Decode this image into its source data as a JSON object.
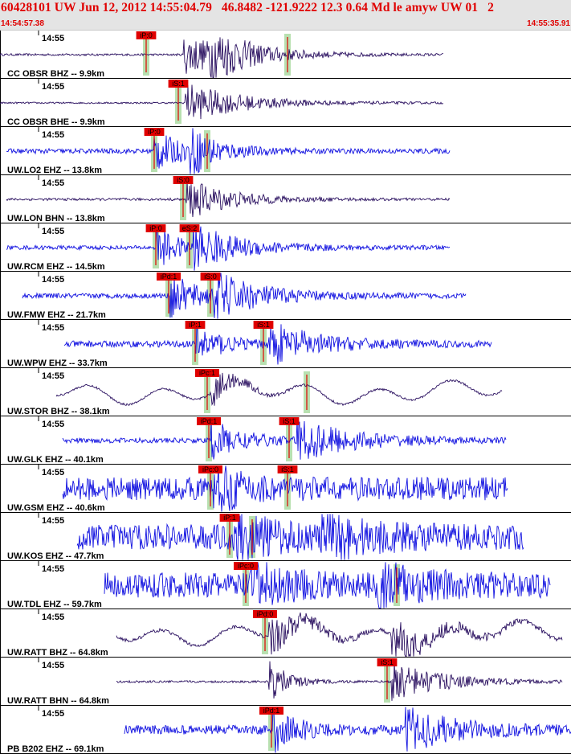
{
  "header": {
    "title": "60428101 UW Jun 12, 2012 14:55:04.79   46.8482 -121.9222 12.3 0.64 Md le amyw UW 01   2",
    "time_start": "14:54:57.38",
    "time_end": "14:55:35.91"
  },
  "colors": {
    "accent": "#e00000",
    "header_bg": "#e4e4e4",
    "trace_blue": "#1010e0",
    "trace_dark": "#2a1060",
    "window_green": "#b8e0b0"
  },
  "traces": [
    {
      "label": "CC OBSR BHZ -- 9.9km",
      "tick": "14:55",
      "color": "#2a1060",
      "noise": 0.05,
      "start": 0,
      "end": 552,
      "shape": "event",
      "bursts": [
        [
          228,
          70
        ],
        [
          260,
          40
        ]
      ],
      "picks": [
        {
          "text": "iP:0",
          "x": 182
        },
        {
          "text": "",
          "x": 358
        }
      ]
    },
    {
      "label": "CC OBSR BHE -- 9.9km",
      "tick": "14:55",
      "color": "#2a1060",
      "noise": 0.04,
      "start": 0,
      "end": 552,
      "shape": "event",
      "bursts": [
        [
          230,
          70
        ]
      ],
      "picks": [
        {
          "text": "iS:1",
          "x": 222
        }
      ]
    },
    {
      "label": "UW.LO2 EHZ -- 13.8km",
      "tick": "14:55",
      "color": "#1010e0",
      "noise": 0.12,
      "start": 8,
      "end": 560,
      "shape": "event",
      "bursts": [
        [
          192,
          35
        ],
        [
          236,
          35
        ]
      ],
      "picks": [
        {
          "text": "iP:0",
          "x": 192
        },
        {
          "text": "",
          "x": 258
        }
      ]
    },
    {
      "label": "UW.LON BHN -- 13.8km",
      "tick": "14:55",
      "color": "#2a1060",
      "noise": 0.06,
      "start": 8,
      "end": 560,
      "shape": "event",
      "bursts": [
        [
          232,
          55
        ]
      ],
      "picks": [
        {
          "text": "iS:0",
          "x": 228
        }
      ]
    },
    {
      "label": "UW.RCM EHZ -- 14.5km",
      "tick": "14:55",
      "color": "#1010e0",
      "noise": 0.1,
      "start": 8,
      "end": 560,
      "shape": "event",
      "bursts": [
        [
          195,
          30
        ],
        [
          240,
          60
        ]
      ],
      "picks": [
        {
          "text": "iP:0",
          "x": 194
        },
        {
          "text": "eS:2",
          "x": 236
        }
      ]
    },
    {
      "label": "UW.FMW EHZ -- 21.7km",
      "tick": "14:55",
      "color": "#1010e0",
      "noise": 0.12,
      "start": 28,
      "end": 580,
      "shape": "event",
      "bursts": [
        [
          212,
          40
        ],
        [
          265,
          60
        ]
      ],
      "picks": [
        {
          "text": "iPd:1",
          "x": 210
        },
        {
          "text": "iS:0",
          "x": 262
        }
      ]
    },
    {
      "label": "UW.WPW EHZ -- 33.7km",
      "tick": "14:55",
      "color": "#1010e0",
      "noise": 0.15,
      "start": 80,
      "end": 612,
      "shape": "event",
      "bursts": [
        [
          244,
          30
        ],
        [
          335,
          60
        ]
      ],
      "picks": [
        {
          "text": "iP:1",
          "x": 243
        },
        {
          "text": "iS:1",
          "x": 328
        }
      ]
    },
    {
      "label": "UW.STOR BHZ -- 38.1km",
      "tick": "14:55",
      "color": "#2a1060",
      "noise": 0.05,
      "start": 70,
      "end": 625,
      "shape": "wavy",
      "bursts": [
        [
          262,
          25
        ]
      ],
      "picks": [
        {
          "text": "iPc:1",
          "x": 258
        },
        {
          "text": "",
          "x": 382
        }
      ]
    },
    {
      "label": "UW.GLK EHZ -- 40.1km",
      "tick": "14:55",
      "color": "#1010e0",
      "noise": 0.12,
      "start": 78,
      "end": 630,
      "shape": "event",
      "bursts": [
        [
          262,
          40
        ],
        [
          370,
          70
        ]
      ],
      "picks": [
        {
          "text": "iPd:1",
          "x": 260
        },
        {
          "text": "iS:1",
          "x": 360
        }
      ]
    },
    {
      "label": "UW.GSM EHZ -- 40.6km",
      "tick": "14:55",
      "color": "#1010e0",
      "noise": 0.55,
      "start": 78,
      "end": 632,
      "shape": "noisy",
      "bursts": [
        [
          265,
          35
        ]
      ],
      "picks": [
        {
          "text": "iPc:0",
          "x": 262
        },
        {
          "text": "iS:1",
          "x": 358
        }
      ]
    },
    {
      "label": "UW.KOS EHZ -- 47.7km",
      "tick": "14:55",
      "color": "#1010e0",
      "noise": 0.6,
      "start": 96,
      "end": 652,
      "shape": "noisy",
      "bursts": [
        [
          290,
          45
        ],
        [
          400,
          50
        ]
      ],
      "picks": [
        {
          "text": "iP:1",
          "x": 286
        },
        {
          "text": "",
          "x": 314
        }
      ]
    },
    {
      "label": "UW.TDL EHZ -- 59.7km",
      "tick": "14:55",
      "color": "#1010e0",
      "noise": 0.6,
      "start": 130,
      "end": 685,
      "shape": "noisy",
      "bursts": [
        [
          310,
          40
        ],
        [
          470,
          45
        ]
      ],
      "picks": [
        {
          "text": "iPc:0",
          "x": 306
        },
        {
          "text": "",
          "x": 494
        }
      ]
    },
    {
      "label": "UW.RATT BHZ -- 64.8km",
      "tick": "14:55",
      "color": "#2a1060",
      "noise": 0.08,
      "start": 145,
      "end": 700,
      "shape": "wavy",
      "bursts": [
        [
          335,
          40
        ],
        [
          488,
          55
        ]
      ],
      "picks": [
        {
          "text": "iPd:0",
          "x": 330
        }
      ]
    },
    {
      "label": "UW.RATT BHN -- 64.8km",
      "tick": "14:55",
      "color": "#2a1060",
      "noise": 0.05,
      "start": 145,
      "end": 700,
      "shape": "event",
      "bursts": [
        [
          335,
          25
        ],
        [
          488,
          60
        ]
      ],
      "picks": [
        {
          "text": "iS:1",
          "x": 482
        }
      ]
    },
    {
      "label": "PB B202 EHZ -- 69.1km",
      "tick": "14:55",
      "color": "#1010e0",
      "noise": 0.22,
      "start": 155,
      "end": 711,
      "shape": "event",
      "bursts": [
        [
          340,
          30
        ],
        [
          505,
          60
        ]
      ],
      "picks": [
        {
          "text": "iPd:1",
          "x": 338
        }
      ]
    }
  ]
}
